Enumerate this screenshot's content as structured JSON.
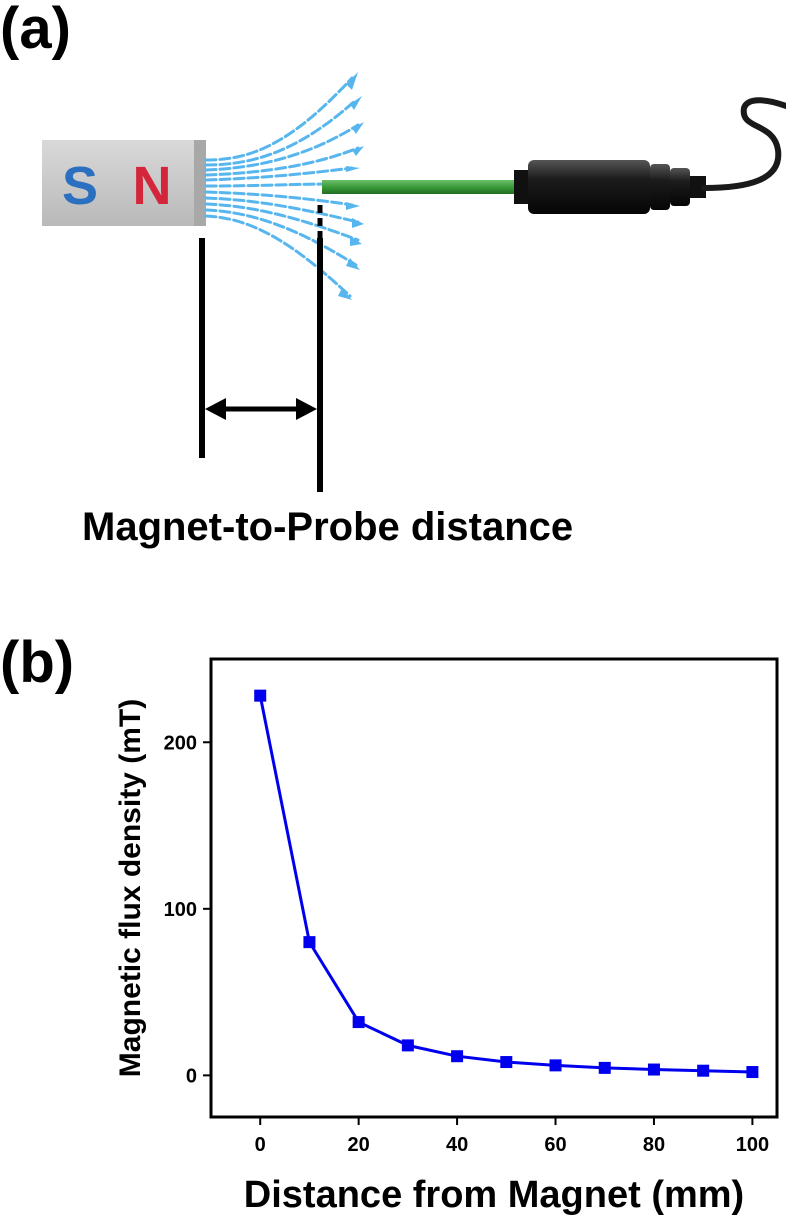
{
  "panel_a": {
    "label": "(a)",
    "magnet_south": "S",
    "magnet_north": "N",
    "caption": "Magnet-to-Probe distance",
    "colors": {
      "south": "#2a6fc0",
      "north": "#d3263b",
      "probe_rod": "#3a9b3a",
      "field_lines": "#58b6ee"
    }
  },
  "panel_b": {
    "label": "(b)"
  },
  "chart_data": {
    "type": "line",
    "title": "",
    "xlabel": "Distance from Magnet (mm)",
    "ylabel": "Magnetic flux density (mT)",
    "xlim": [
      -10,
      105
    ],
    "ylim": [
      -25,
      250
    ],
    "xticks": [
      0,
      20,
      40,
      60,
      80,
      100
    ],
    "yticks": [
      0,
      100,
      200
    ],
    "grid": false,
    "legend": "none",
    "series": [
      {
        "marker": "square",
        "color": "#0000ee",
        "x": [
          0,
          10,
          20,
          30,
          40,
          50,
          60,
          70,
          80,
          90,
          100
        ],
        "y": [
          228,
          80,
          32,
          18,
          11.5,
          8,
          6,
          4.5,
          3.5,
          2.8,
          2
        ]
      }
    ]
  }
}
